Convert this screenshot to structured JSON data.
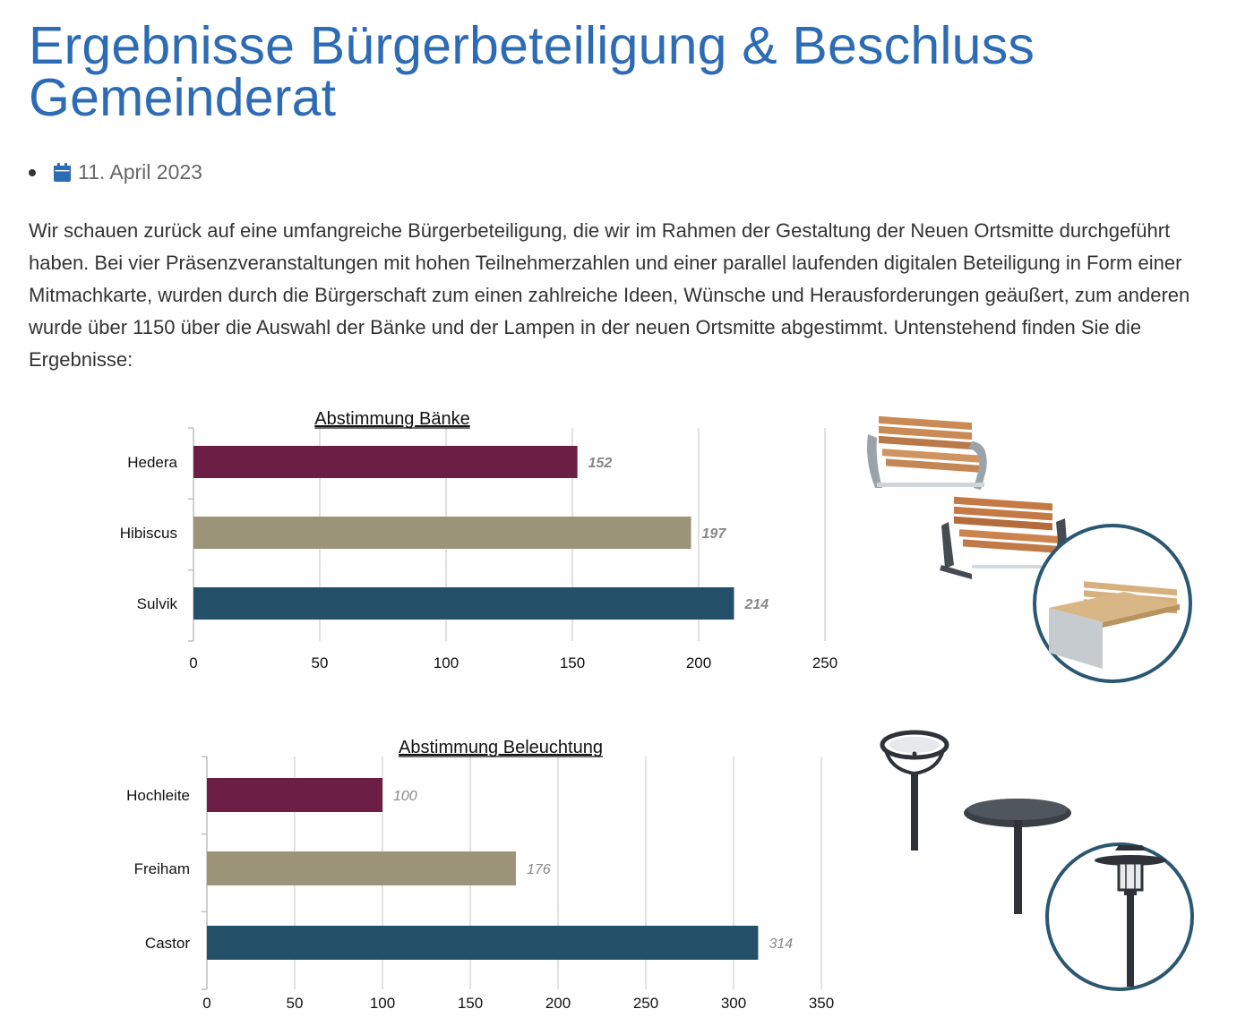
{
  "page": {
    "title": "Ergebnisse Bürgerbeteiligung & Beschluss Gemeinderat",
    "date": "11. April 2023",
    "intro": "Wir schauen zurück auf eine umfangreiche Bürgerbeteiligung, die wir im Rahmen der Gestaltung der Neuen Ortsmitte durchgeführt haben. Bei vier Präsenzveranstaltungen mit hohen Teilnehmerzahlen und einer parallel laufenden digitalen Beteiligung in Form einer Mitmachkarte, wurden durch die Bürgerschaft zum einen zahlreiche Ideen, Wünsche und Herausforderungen geäußert, zum anderen wurde über 1150 über die Auswahl der Bänke und der Lampen in der neuen Ortsmitte abgestimmt. Untenstehend finden Sie die Ergebnisse:",
    "icons": {
      "date_icon": "calendar-icon"
    }
  },
  "colors": {
    "title": "#2d6bb4",
    "series": [
      "#6d1e44",
      "#9c9479",
      "#235068"
    ],
    "frame": "#2b5770"
  },
  "chart_data": [
    {
      "type": "bar",
      "orientation": "horizontal",
      "title": "Abstimmung Bänke",
      "categories": [
        "Hedera",
        "Hibiscus",
        "Sulvik"
      ],
      "values": [
        152,
        197,
        214
      ],
      "xlim": [
        0,
        250
      ],
      "xticks": [
        0,
        50,
        100,
        150,
        200,
        250
      ],
      "grid": true,
      "legend": "none"
    },
    {
      "type": "bar",
      "orientation": "horizontal",
      "title": "Abstimmung Beleuchtung",
      "categories": [
        "Hochleite",
        "Freiham",
        "Castor"
      ],
      "values": [
        100,
        176,
        314
      ],
      "xlim": [
        0,
        350
      ],
      "xticks": [
        0,
        50,
        100,
        150,
        200,
        250,
        300,
        350
      ],
      "grid": true,
      "legend": "none"
    }
  ]
}
